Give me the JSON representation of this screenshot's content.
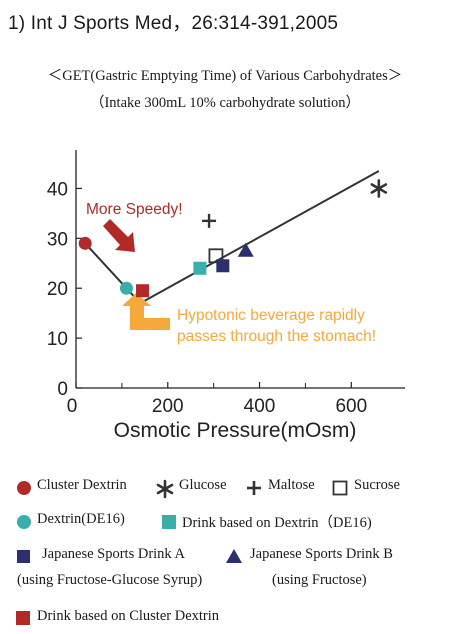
{
  "header": {
    "citation": "1)  Int J Sports Med，26:314-391,2005",
    "title": "＜GET(Gastric Emptying Time) of Various Carbohydrates＞",
    "subtitle": "（Intake 300mL 10% carbohydrate solution）"
  },
  "chart_data": {
    "type": "scatter",
    "xlabel": "Osmotic Pressure(mOsm)",
    "ylabel": "",
    "xlim": [
      0,
      680
    ],
    "ylim": [
      0,
      45
    ],
    "x_ticks": [
      0,
      200,
      400,
      600
    ],
    "y_ticks": [
      0,
      10,
      20,
      30,
      40
    ],
    "grid": false,
    "legend_placement": "bottom",
    "series": [
      {
        "name": "Cluster Dextrin",
        "marker": "filled-circle",
        "color": "#b02a2a",
        "points": [
          {
            "x": 20,
            "y": 29
          }
        ]
      },
      {
        "name": "Glucose",
        "marker": "asterisk",
        "color": "#333333",
        "points": [
          {
            "x": 660,
            "y": 40
          }
        ]
      },
      {
        "name": "Maltose",
        "marker": "plus",
        "color": "#333333",
        "points": [
          {
            "x": 290,
            "y": 33.5
          }
        ]
      },
      {
        "name": "Sucrose",
        "marker": "open-square",
        "color": "#333333",
        "points": [
          {
            "x": 305,
            "y": 26.5
          }
        ]
      },
      {
        "name": "Dextrin(DE16)",
        "marker": "filled-circle",
        "color": "#3aaeaa",
        "points": [
          {
            "x": 110,
            "y": 20
          }
        ]
      },
      {
        "name": "Drink based on Dextrin（DE16)",
        "marker": "filled-square",
        "color": "#3aaeaa",
        "points": [
          {
            "x": 270,
            "y": 24
          }
        ]
      },
      {
        "name": "Japanese Sports Drink A",
        "marker": "filled-square",
        "color": "#2b2f6b",
        "points": [
          {
            "x": 320,
            "y": 24.5
          }
        ]
      },
      {
        "name": "Japanese Sports Drink B",
        "marker": "filled-triangle",
        "color": "#2b2f6b",
        "points": [
          {
            "x": 370,
            "y": 27.5
          }
        ]
      },
      {
        "name": "Drink based on Cluster Dextrin",
        "marker": "filled-square",
        "color": "#b02a2a",
        "points": [
          {
            "x": 145,
            "y": 19.5
          }
        ]
      }
    ],
    "trend_line": [
      {
        "x": 20,
        "y": 29
      },
      {
        "x": 140,
        "y": 17
      },
      {
        "x": 660,
        "y": 43.5
      }
    ],
    "annotations": {
      "speedy": "More Speedy!",
      "hypotonic_line1": "Hypotonic beverage rapidly",
      "hypotonic_line2": "passes through the stomach!"
    }
  },
  "colors": {
    "red": "#b02a2a",
    "teal": "#3aaeaa",
    "navy": "#2b2f6b",
    "orange": "#f5a93a",
    "ink": "#333333"
  },
  "legend": {
    "cluster_dextrin": "Cluster Dextrin",
    "glucose": "Glucose",
    "maltose": "Maltose",
    "sucrose": "Sucrose",
    "dextrin": "Dextrin(DE16)",
    "drink_dextrin": "Drink based on Dextrin（DE16)",
    "sports_a": "Japanese Sports Drink A",
    "sports_a_note": "(using Fructose-Glucose Syrup)",
    "sports_b": "Japanese Sports Drink B",
    "sports_b_note": "(using Fructose)",
    "drink_cluster": "Drink based on Cluster Dextrin"
  }
}
